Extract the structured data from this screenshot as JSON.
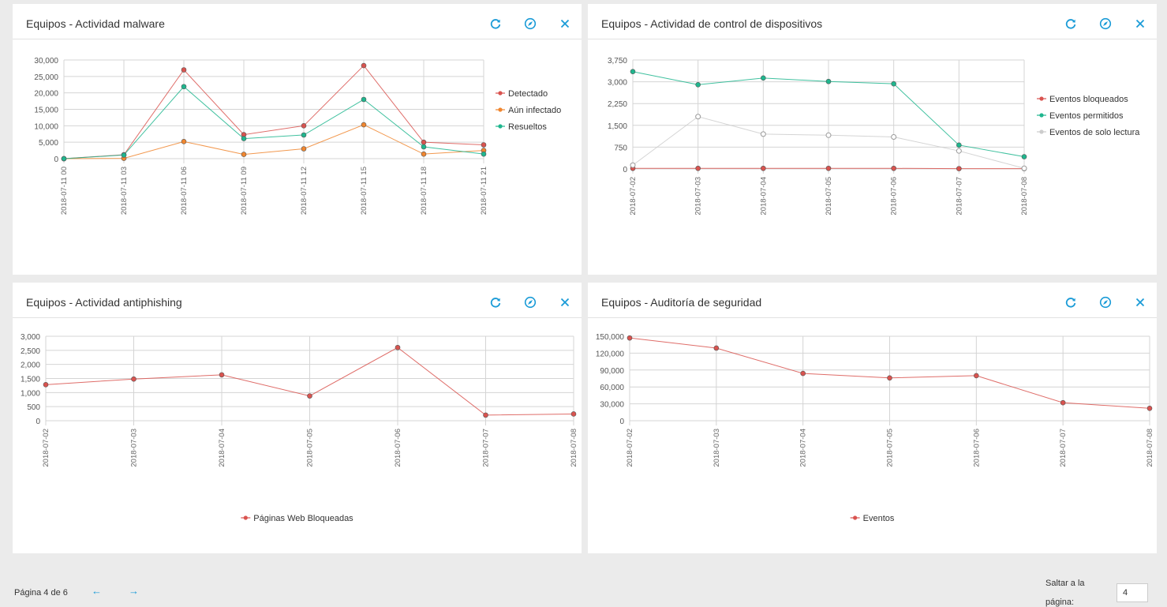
{
  "panels": [
    {
      "title": "Equipos - Actividad malware",
      "chart_data": {
        "type": "line",
        "categories": [
          "2018-07-11 00",
          "2018-07-11 03",
          "2018-07-11 06",
          "2018-07-11 09",
          "2018-07-11 12",
          "2018-07-11 15",
          "2018-07-11 18",
          "2018-07-11 21"
        ],
        "y_ticks": [
          "30,000",
          "25,000",
          "20,000",
          "15,000",
          "10,000",
          "5,000",
          "0"
        ],
        "ylim": [
          0,
          30000
        ],
        "legend_position": "right",
        "series": [
          {
            "name": "Detectado",
            "color": "#d9534f",
            "values": [
              0,
              1200,
              27000,
              7300,
              10000,
              28300,
              5000,
              4200
            ]
          },
          {
            "name": "Aún infectado",
            "color": "#f0862f",
            "values": [
              0,
              100,
              5200,
              1300,
              3000,
              10300,
              1400,
              2500
            ]
          },
          {
            "name": "Resueltos",
            "color": "#1fb68e",
            "values": [
              0,
              1100,
              21900,
              6100,
              7200,
              18000,
              3600,
              1400
            ]
          }
        ]
      }
    },
    {
      "title": "Equipos - Actividad de control de dispositivos",
      "chart_data": {
        "type": "line",
        "categories": [
          "2018-07-02",
          "2018-07-03",
          "2018-07-04",
          "2018-07-05",
          "2018-07-06",
          "2018-07-07",
          "2018-07-08"
        ],
        "y_ticks": [
          "3,750",
          "3,000",
          "2,250",
          "1,500",
          "750",
          "0"
        ],
        "ylim": [
          0,
          3750
        ],
        "legend_position": "right",
        "series": [
          {
            "name": "Eventos bloqueados",
            "color": "#d9534f",
            "values": [
              20,
              20,
              20,
              20,
              20,
              10,
              10
            ]
          },
          {
            "name": "Eventos permitidos",
            "color": "#1fb68e",
            "values": [
              3350,
              2900,
              3130,
              3010,
              2930,
              820,
              420
            ]
          },
          {
            "name": "Eventos de solo lectura",
            "color": "#cccccc",
            "values": [
              130,
              1800,
              1200,
              1160,
              1100,
              620,
              20
            ]
          }
        ]
      }
    },
    {
      "title": "Equipos - Actividad antiphishing",
      "chart_data": {
        "type": "line",
        "categories": [
          "2018-07-02",
          "2018-07-03",
          "2018-07-04",
          "2018-07-05",
          "2018-07-06",
          "2018-07-07",
          "2018-07-08"
        ],
        "y_ticks": [
          "3,000",
          "2,500",
          "2,000",
          "1,500",
          "1,000",
          "500",
          "0"
        ],
        "ylim": [
          0,
          3000
        ],
        "legend_position": "bottom",
        "series": [
          {
            "name": "Páginas Web Bloqueadas",
            "color": "#d9534f",
            "values": [
              1280,
              1480,
              1630,
              880,
              2600,
              200,
              240
            ]
          }
        ]
      }
    },
    {
      "title": "Equipos - Auditoría de seguridad",
      "chart_data": {
        "type": "line",
        "categories": [
          "2018-07-02",
          "2018-07-03",
          "2018-07-04",
          "2018-07-05",
          "2018-07-06",
          "2018-07-07",
          "2018-07-08"
        ],
        "y_ticks": [
          "150,000",
          "120,000",
          "90,000",
          "60,000",
          "30,000",
          "0"
        ],
        "ylim": [
          0,
          150000
        ],
        "legend_position": "bottom",
        "series": [
          {
            "name": "Eventos",
            "color": "#d9534f",
            "values": [
              147000,
              129000,
              84000,
              76000,
              80000,
              32000,
              22000
            ]
          }
        ]
      }
    }
  ],
  "icons": {
    "refresh": "refresh-icon",
    "settings": "settings-icon",
    "close": "close-icon"
  },
  "accent_color": "#1a9bd7",
  "pagination": {
    "page_label": "Página 4 de 6",
    "prev_arrow": "←",
    "next_arrow": "→",
    "jump_label_line1": "Saltar a la",
    "jump_label_line2": "página:",
    "jump_value": "4"
  }
}
